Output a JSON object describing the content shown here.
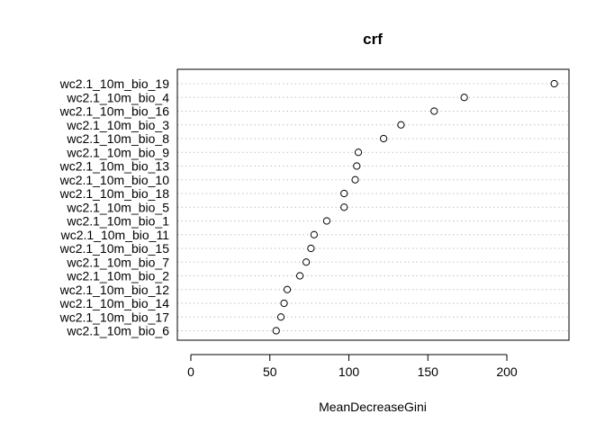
{
  "chart_data": {
    "type": "scatter",
    "title": "crf",
    "xlabel": "MeanDecreaseGini",
    "ylabel": "",
    "xlim": [
      -5,
      236
    ],
    "xticks": [
      0,
      50,
      100,
      150,
      200
    ],
    "grid": "dotted horizontal lines at each category",
    "categories": [
      "wc2.1_10m_bio_19",
      "wc2.1_10m_bio_4",
      "wc2.1_10m_bio_16",
      "wc2.1_10m_bio_3",
      "wc2.1_10m_bio_8",
      "wc2.1_10m_bio_9",
      "wc2.1_10m_bio_13",
      "wc2.1_10m_bio_10",
      "wc2.1_10m_bio_18",
      "wc2.1_10m_bio_5",
      "wc2.1_10m_bio_1",
      "wc2.1_10m_bio_11",
      "wc2.1_10m_bio_15",
      "wc2.1_10m_bio_7",
      "wc2.1_10m_bio_2",
      "wc2.1_10m_bio_12",
      "wc2.1_10m_bio_14",
      "wc2.1_10m_bio_17",
      "wc2.1_10m_bio_6"
    ],
    "values": [
      230,
      173,
      154,
      133,
      122,
      106,
      105,
      104,
      97,
      97,
      86,
      78,
      76,
      73,
      69,
      61,
      59,
      57,
      54
    ]
  }
}
